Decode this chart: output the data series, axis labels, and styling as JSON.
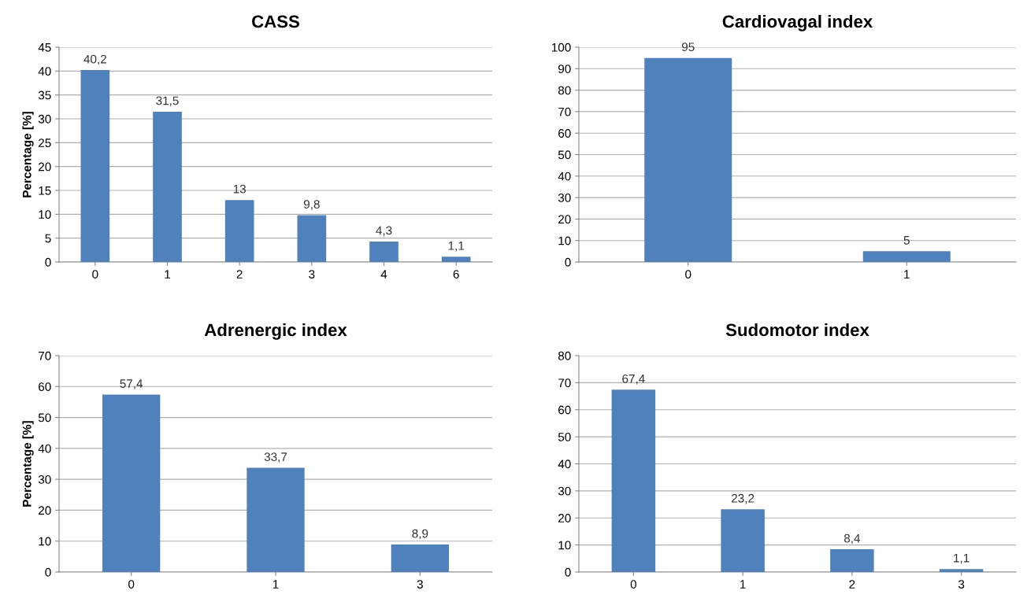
{
  "chart_data": [
    {
      "type": "bar",
      "title": "CASS",
      "ylabel": "Percentage [%]",
      "categories": [
        "0",
        "1",
        "2",
        "3",
        "4",
        "6"
      ],
      "values": [
        40.2,
        31.5,
        13,
        9.8,
        4.3,
        1.1
      ],
      "value_labels": [
        "40,2",
        "31,5",
        "13",
        "9,8",
        "4,3",
        "1,1"
      ],
      "color": "#4f81bd",
      "ylim": [
        0,
        45
      ],
      "yticks": [
        0,
        5,
        10,
        15,
        20,
        25,
        30,
        35,
        40,
        45
      ],
      "grid": "y",
      "legend": false
    },
    {
      "type": "bar",
      "title": "Cardiovagal index",
      "categories": [
        "0",
        "1"
      ],
      "values": [
        95,
        5
      ],
      "value_labels": [
        "95",
        "5"
      ],
      "color": "#4f81bd",
      "ylim": [
        0,
        100
      ],
      "yticks": [
        0,
        10,
        20,
        30,
        40,
        50,
        60,
        70,
        80,
        90,
        100
      ],
      "grid": "y",
      "legend": false
    },
    {
      "type": "bar",
      "title": "Adrenergic index",
      "ylabel": "Percentage [%]",
      "categories": [
        "0",
        "1",
        "3"
      ],
      "values": [
        57.4,
        33.7,
        8.9
      ],
      "value_labels": [
        "57,4",
        "33,7",
        "8,9"
      ],
      "color": "#4f81bd",
      "ylim": [
        0,
        70
      ],
      "yticks": [
        0,
        10,
        20,
        30,
        40,
        50,
        60,
        70
      ],
      "grid": "y",
      "legend": false
    },
    {
      "type": "bar",
      "title": "Sudomotor index",
      "categories": [
        "0",
        "1",
        "2",
        "3"
      ],
      "values": [
        67.4,
        23.2,
        8.4,
        1.1
      ],
      "value_labels": [
        "67,4",
        "23,2",
        "8,4",
        "1,1"
      ],
      "color": "#4f81bd",
      "ylim": [
        0,
        80
      ],
      "yticks": [
        0,
        10,
        20,
        30,
        40,
        50,
        60,
        70,
        80
      ],
      "grid": "y",
      "legend": false
    }
  ]
}
